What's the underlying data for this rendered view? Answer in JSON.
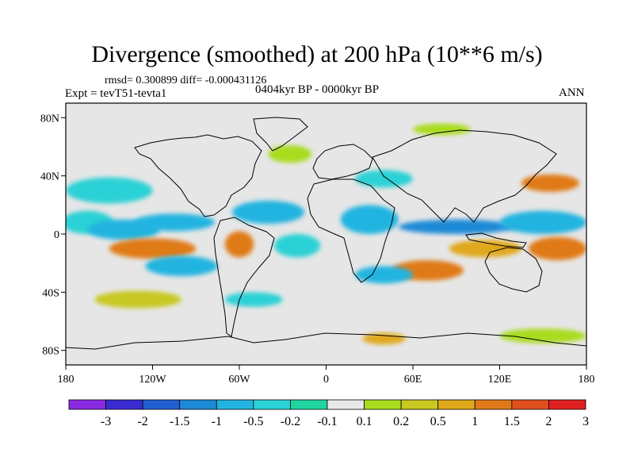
{
  "chart_data": {
    "type": "heatmap",
    "title": "Divergence (smoothed) at 200 hPa (10**6 m/s)",
    "stats": "rmsd= 0.300899 diff= -0.000431126",
    "left_label": "Expt = tevT51-tevta1",
    "center_label": "0404kyr BP - 0000kyr BP",
    "right_label": "ANN",
    "xlim": [
      -180,
      180
    ],
    "ylim": [
      -90,
      90
    ],
    "x_ticks": [
      {
        "value": -180,
        "label": "180"
      },
      {
        "value": -120,
        "label": "120W"
      },
      {
        "value": -60,
        "label": "60W"
      },
      {
        "value": 0,
        "label": "0"
      },
      {
        "value": 60,
        "label": "60E"
      },
      {
        "value": 120,
        "label": "120E"
      },
      {
        "value": 180,
        "label": "180"
      }
    ],
    "y_ticks": [
      {
        "value": 80,
        "label": "80N"
      },
      {
        "value": 40,
        "label": "40N"
      },
      {
        "value": 0,
        "label": "0"
      },
      {
        "value": -40,
        "label": "40S"
      },
      {
        "value": -80,
        "label": "80S"
      }
    ],
    "colorbar": {
      "levels": [
        "-3",
        "-2",
        "-1.5",
        "-1",
        "-0.5",
        "-0.2",
        "-0.1",
        "0.1",
        "0.2",
        "0.5",
        "1",
        "1.5",
        "2",
        "3"
      ],
      "colors": [
        "#8a2be2",
        "#3b2bd1",
        "#1f5fd1",
        "#1c8ad6",
        "#22b4e0",
        "#2bd1d6",
        "#1fd6a0",
        "#e8e8e8",
        "#a8dc1e",
        "#c8c820",
        "#e0a81a",
        "#e07a18",
        "#e0501e",
        "#e02020"
      ]
    },
    "field_blobs": [
      {
        "lon": -165,
        "lat": 8,
        "rx": 18,
        "ry": 8,
        "bin": 5
      },
      {
        "lon": -140,
        "lat": 3,
        "rx": 25,
        "ry": 7,
        "bin": 4
      },
      {
        "lon": -105,
        "lat": 8,
        "rx": 28,
        "ry": 6,
        "bin": 4
      },
      {
        "lon": -150,
        "lat": 30,
        "rx": 30,
        "ry": 9,
        "bin": 5
      },
      {
        "lon": -120,
        "lat": -10,
        "rx": 30,
        "ry": 7,
        "bin": 11
      },
      {
        "lon": -100,
        "lat": -22,
        "rx": 25,
        "ry": 7,
        "bin": 4
      },
      {
        "lon": -60,
        "lat": -7,
        "rx": 10,
        "ry": 9,
        "bin": 11
      },
      {
        "lon": -40,
        "lat": 15,
        "rx": 25,
        "ry": 8,
        "bin": 4
      },
      {
        "lon": -20,
        "lat": -8,
        "rx": 16,
        "ry": 8,
        "bin": 5
      },
      {
        "lon": 30,
        "lat": 10,
        "rx": 20,
        "ry": 10,
        "bin": 4
      },
      {
        "lon": 40,
        "lat": 38,
        "rx": 20,
        "ry": 6,
        "bin": 5
      },
      {
        "lon": 90,
        "lat": 5,
        "rx": 40,
        "ry": 5,
        "bin": 3
      },
      {
        "lon": 150,
        "lat": 8,
        "rx": 30,
        "ry": 8,
        "bin": 4
      },
      {
        "lon": 155,
        "lat": 35,
        "rx": 20,
        "ry": 6,
        "bin": 11
      },
      {
        "lon": 110,
        "lat": -10,
        "rx": 25,
        "ry": 6,
        "bin": 10
      },
      {
        "lon": 160,
        "lat": -10,
        "rx": 20,
        "ry": 8,
        "bin": 11
      },
      {
        "lon": 70,
        "lat": -25,
        "rx": 25,
        "ry": 7,
        "bin": 11
      },
      {
        "lon": 40,
        "lat": -28,
        "rx": 20,
        "ry": 6,
        "bin": 4
      },
      {
        "lon": -130,
        "lat": -45,
        "rx": 30,
        "ry": 6,
        "bin": 9
      },
      {
        "lon": -50,
        "lat": -45,
        "rx": 20,
        "ry": 5,
        "bin": 5
      },
      {
        "lon": 40,
        "lat": -72,
        "rx": 15,
        "ry": 4,
        "bin": 10
      },
      {
        "lon": 150,
        "lat": -70,
        "rx": 30,
        "ry": 5,
        "bin": 8
      },
      {
        "lon": 80,
        "lat": 72,
        "rx": 20,
        "ry": 4,
        "bin": 8
      },
      {
        "lon": -25,
        "lat": 55,
        "rx": 15,
        "ry": 6,
        "bin": 8
      }
    ]
  }
}
